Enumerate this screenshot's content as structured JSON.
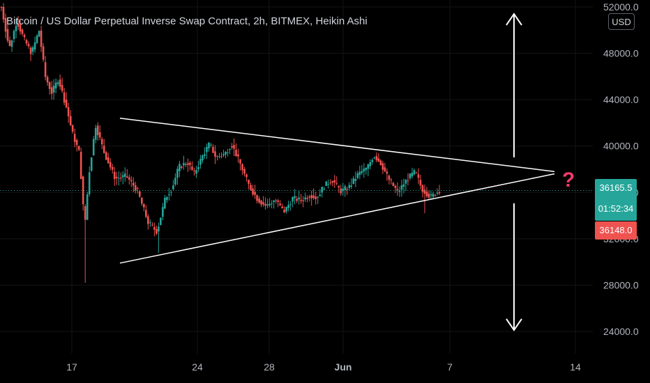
{
  "header": {
    "title": "Bitcoin / US Dollar Perpetual Inverse Swap Contract, 2h, BITMEX, Heikin Ashi",
    "currency": "USD"
  },
  "price_scale": {
    "last_price": "36165.5",
    "countdown": "01:52:34",
    "mark_price": "36148.0"
  },
  "annotation": {
    "symbol": "?"
  },
  "colors": {
    "background": "#000000",
    "up": "#26a69a",
    "down": "#ef5350",
    "drawing": "#ffffff",
    "question": "#f23b6a",
    "axis_text": "#b2b5be"
  },
  "chart_data": {
    "type": "candlestick",
    "chart_style": "Heikin Ashi",
    "interval": "2h",
    "exchange": "BITMEX",
    "x_ticks": [
      "17",
      "24",
      "28",
      "Jun",
      "7",
      "14"
    ],
    "y_ticks": [
      52000,
      48000,
      44000,
      40000,
      36000,
      32000,
      28000,
      24000
    ],
    "ylim": [
      22900,
      52300
    ],
    "price_anchors": [
      [
        0.0,
        52000
      ],
      [
        0.018,
        48400
      ],
      [
        0.035,
        50800
      ],
      [
        0.052,
        49200
      ],
      [
        0.069,
        48000
      ],
      [
        0.086,
        50000
      ],
      [
        0.1,
        46000
      ],
      [
        0.115,
        44600
      ],
      [
        0.13,
        45800
      ],
      [
        0.148,
        43400
      ],
      [
        0.163,
        41000
      ],
      [
        0.178,
        39400
      ],
      [
        0.19,
        33000
      ],
      [
        0.2,
        37600
      ],
      [
        0.215,
        41800
      ],
      [
        0.235,
        39400
      ],
      [
        0.26,
        37200
      ],
      [
        0.285,
        37400
      ],
      [
        0.31,
        36200
      ],
      [
        0.335,
        33400
      ],
      [
        0.355,
        32600
      ],
      [
        0.375,
        35600
      ],
      [
        0.39,
        36400
      ],
      [
        0.405,
        38200
      ],
      [
        0.425,
        38600
      ],
      [
        0.44,
        37600
      ],
      [
        0.46,
        39200
      ],
      [
        0.475,
        40200
      ],
      [
        0.49,
        39000
      ],
      [
        0.51,
        39300
      ],
      [
        0.525,
        40200
      ],
      [
        0.545,
        38500
      ],
      [
        0.565,
        36600
      ],
      [
        0.585,
        35400
      ],
      [
        0.605,
        34800
      ],
      [
        0.625,
        35400
      ],
      [
        0.645,
        34300
      ],
      [
        0.665,
        35500
      ],
      [
        0.685,
        35300
      ],
      [
        0.705,
        35800
      ],
      [
        0.72,
        35500
      ],
      [
        0.735,
        36500
      ],
      [
        0.755,
        37100
      ],
      [
        0.775,
        36100
      ],
      [
        0.795,
        36500
      ],
      [
        0.815,
        37600
      ],
      [
        0.835,
        38100
      ],
      [
        0.85,
        39200
      ],
      [
        0.865,
        38600
      ],
      [
        0.885,
        37100
      ],
      [
        0.905,
        36000
      ],
      [
        0.925,
        37100
      ],
      [
        0.945,
        37800
      ],
      [
        0.96,
        36300
      ],
      [
        0.98,
        35600
      ],
      [
        1.0,
        36165.5
      ]
    ],
    "spike_lows": [
      {
        "t": 0.19,
        "low": 28200
      },
      {
        "t": 0.357,
        "low": 30800
      },
      {
        "t": 0.968,
        "low": 34200
      }
    ],
    "last_price": 36165.5,
    "mark_price": 36148.0,
    "symmetric_triangle": {
      "upper": [
        [
          0,
          42400
        ],
        [
          1,
          37800
        ]
      ],
      "lower": [
        [
          0,
          29900
        ],
        [
          1,
          37600
        ]
      ]
    }
  }
}
